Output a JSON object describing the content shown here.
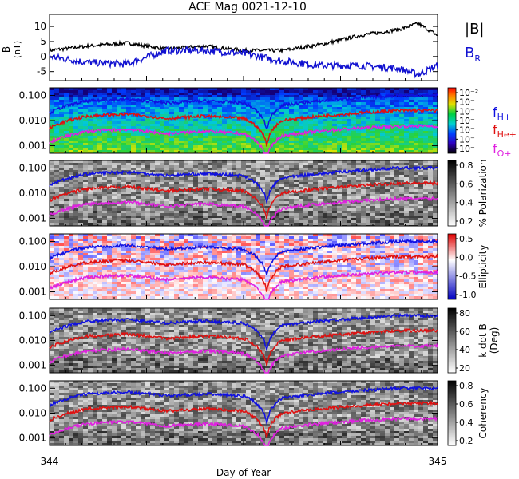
{
  "title": "ACE Mag 0021-12-10",
  "xlabel": "Day of Year",
  "x_ticks": [
    "344",
    "345"
  ],
  "x_range": [
    344,
    345
  ],
  "mag_panel": {
    "ylabel": "B",
    "ylabel_unit": "(nT)",
    "y_ticks": [
      "10",
      "5",
      "0",
      "-5"
    ],
    "ylim": [
      -8,
      14
    ],
    "legend": [
      {
        "label": "|B|",
        "color": "#000000"
      },
      {
        "label": "B",
        "sub": "R",
        "color": "#1010d0"
      }
    ]
  },
  "freq_ticks": [
    "0.100",
    "0.010",
    "0.001"
  ],
  "freq_lines": [
    {
      "label": "f",
      "sub": "H+",
      "color": "#1010e0"
    },
    {
      "label": "f",
      "sub": "He+",
      "color": "#e01010"
    },
    {
      "label": "f",
      "sub": "O+",
      "color": "#e020e0"
    }
  ],
  "spectral_panels": [
    {
      "id": "power",
      "colorbar_label": "",
      "colorbar_ticks": [
        "10⁻²",
        "10⁻",
        "10⁻",
        "10⁻",
        "10⁻",
        "10⁻",
        "10⁻"
      ],
      "scheme": "rainbow"
    },
    {
      "id": "polarization",
      "colorbar_label": "% Polarization",
      "colorbar_ticks": [
        "0.8",
        "0.6",
        "0.4",
        "0.2"
      ],
      "scheme": "gray"
    },
    {
      "id": "ellipticity",
      "colorbar_label": "Ellipticity",
      "colorbar_ticks": [
        "0.5",
        "0.0",
        "-0.5",
        "-1.0"
      ],
      "scheme": "redblue"
    },
    {
      "id": "kdotb",
      "colorbar_label": "k dot B",
      "colorbar_label2": "(Deg)",
      "colorbar_ticks": [
        "80",
        "60",
        "40",
        "20"
      ],
      "scheme": "gray"
    },
    {
      "id": "coherency",
      "colorbar_label": "Coherency",
      "colorbar_ticks": [
        "0.8",
        "0.6",
        "0.4",
        "0.2"
      ],
      "scheme": "gray"
    }
  ],
  "chart_data": {
    "type": "line",
    "x_range": [
      344,
      345
    ],
    "series": [
      {
        "name": "|B|",
        "x": [
          344.0,
          344.1,
          344.2,
          344.3,
          344.4,
          344.5,
          344.6,
          344.7,
          344.8,
          344.9,
          344.95,
          345.0
        ],
        "values": [
          2,
          3.5,
          4.5,
          2.5,
          3.5,
          2,
          2,
          4,
          7,
          9,
          11,
          7
        ]
      },
      {
        "name": "B_R",
        "x": [
          344.0,
          344.1,
          344.2,
          344.3,
          344.4,
          344.5,
          344.6,
          344.7,
          344.8,
          344.9,
          344.95,
          345.0
        ],
        "values": [
          0,
          -2,
          -2.5,
          2,
          2,
          1,
          -1.5,
          -3,
          -3,
          -4,
          -6,
          -3
        ]
      },
      {
        "name": "f_H+",
        "x": [
          344.0,
          344.1,
          344.2,
          344.3,
          344.4,
          344.5,
          344.56,
          344.6,
          344.7,
          344.8,
          344.9,
          345.0
        ],
        "values": [
          0.02,
          0.06,
          0.07,
          0.05,
          0.06,
          0.05,
          0.004,
          0.04,
          0.06,
          0.08,
          0.1,
          0.1
        ]
      },
      {
        "name": "f_He+",
        "x": [
          344.0,
          344.1,
          344.2,
          344.3,
          344.4,
          344.5,
          344.56,
          344.6,
          344.7,
          344.8,
          344.9,
          345.0
        ],
        "values": [
          0.005,
          0.015,
          0.018,
          0.012,
          0.015,
          0.012,
          0.001,
          0.01,
          0.015,
          0.02,
          0.025,
          0.025
        ]
      },
      {
        "name": "f_O+",
        "x": [
          344.0,
          344.1,
          344.2,
          344.3,
          344.4,
          344.5,
          344.56,
          344.6,
          344.7,
          344.8,
          344.9,
          345.0
        ],
        "values": [
          0.0013,
          0.0038,
          0.0045,
          0.003,
          0.0038,
          0.003,
          0.00025,
          0.0025,
          0.0038,
          0.005,
          0.006,
          0.006
        ]
      }
    ]
  }
}
